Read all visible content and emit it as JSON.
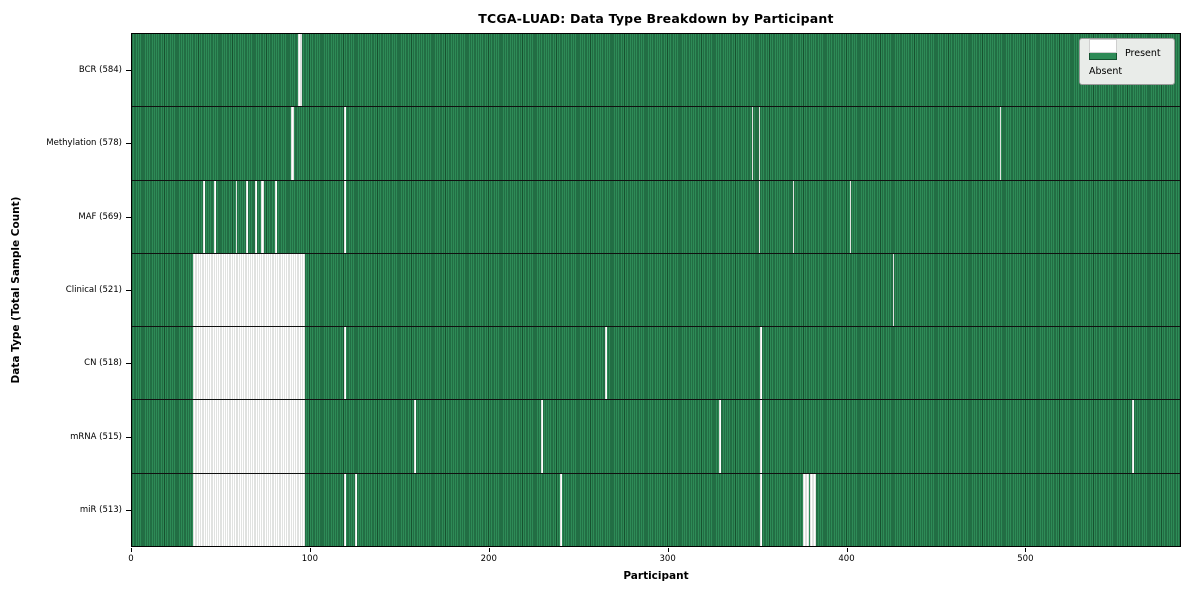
{
  "chart_data": {
    "type": "heatmap",
    "title": "TCGA-LUAD: Data Type Breakdown by Participant",
    "xlabel": "Participant",
    "ylabel": "Data Type (Total Sample Count)",
    "x_ticks": [
      0,
      100,
      200,
      300,
      400,
      500
    ],
    "x_max": 587,
    "grid": false,
    "legend": {
      "position": "upper right",
      "items": [
        {
          "label": "Present",
          "color": "#2e8b57"
        },
        {
          "label": "Absent",
          "color": "#ffffff"
        }
      ]
    },
    "colors": {
      "present_fill": "#2e8b57",
      "present_edge": "#175230",
      "absent_fill": "#ffffff",
      "absent_edge": "#c2c6c2",
      "row_divider": "#101010"
    },
    "rows": [
      {
        "id": "bcr",
        "label": "BCR (584)",
        "data_type": "BCR",
        "count": 584,
        "absent_ranges": [
          [
            93,
            95
          ]
        ]
      },
      {
        "id": "methylation",
        "label": "Methylation (578)",
        "data_type": "Methylation",
        "count": 578,
        "absent_ranges": [
          [
            89,
            91
          ],
          [
            119,
            120
          ],
          [
            347,
            348
          ],
          [
            351,
            352
          ],
          [
            486,
            487
          ]
        ]
      },
      {
        "id": "maf",
        "label": "MAF (569)",
        "data_type": "MAF",
        "count": 569,
        "absent_ranges": [
          [
            40,
            41
          ],
          [
            46,
            47
          ],
          [
            58,
            59
          ],
          [
            64,
            65
          ],
          [
            69,
            70
          ],
          [
            72,
            74
          ],
          [
            80,
            81
          ],
          [
            119,
            120
          ],
          [
            351,
            352
          ],
          [
            370,
            371
          ],
          [
            402,
            403
          ]
        ]
      },
      {
        "id": "clinical",
        "label": "Clinical (521)",
        "data_type": "Clinical",
        "count": 521,
        "absent_ranges": [
          [
            34,
            97
          ],
          [
            426,
            427
          ]
        ]
      },
      {
        "id": "cn",
        "label": "CN (518)",
        "data_type": "CN",
        "count": 518,
        "absent_ranges": [
          [
            34,
            97
          ],
          [
            119,
            120
          ],
          [
            265,
            266
          ],
          [
            352,
            353
          ]
        ]
      },
      {
        "id": "mrna",
        "label": "mRNA (515)",
        "data_type": "mRNA",
        "count": 515,
        "absent_ranges": [
          [
            34,
            97
          ],
          [
            158,
            159
          ],
          [
            229,
            230
          ],
          [
            329,
            330
          ],
          [
            352,
            353
          ],
          [
            560,
            561
          ]
        ]
      },
      {
        "id": "mir",
        "label": "miR (513)",
        "data_type": "miR",
        "count": 513,
        "absent_ranges": [
          [
            34,
            97
          ],
          [
            119,
            120
          ],
          [
            125,
            126
          ],
          [
            240,
            241
          ],
          [
            352,
            353
          ],
          [
            376,
            379
          ],
          [
            380,
            383
          ]
        ]
      }
    ]
  }
}
